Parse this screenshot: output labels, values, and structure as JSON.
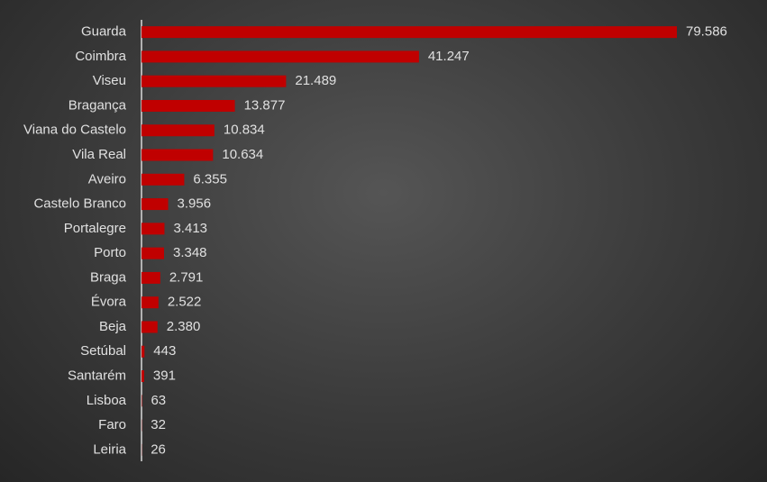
{
  "chart_data": {
    "type": "bar",
    "orientation": "horizontal",
    "categories": [
      "Guarda",
      "Coimbra",
      "Viseu",
      "Bragança",
      "Viana do Castelo",
      "Vila Real",
      "Aveiro",
      "Castelo Branco",
      "Portalegre",
      "Porto",
      "Braga",
      "Évora",
      "Beja",
      "Setúbal",
      "Santarém",
      "Lisboa",
      "Faro",
      "Leiria"
    ],
    "values": [
      79586,
      41247,
      21489,
      13877,
      10834,
      10634,
      6355,
      3956,
      3413,
      3348,
      2791,
      2522,
      2380,
      443,
      391,
      63,
      32,
      26
    ],
    "value_labels": [
      "79.586",
      "41.247",
      "21.489",
      "13.877",
      "10.834",
      "10.634",
      "6.355",
      "3.956",
      "3.413",
      "3.348",
      "2.791",
      "2.522",
      "2.380",
      "443",
      "391",
      "63",
      "32",
      "26"
    ],
    "color": "#c00000"
  }
}
